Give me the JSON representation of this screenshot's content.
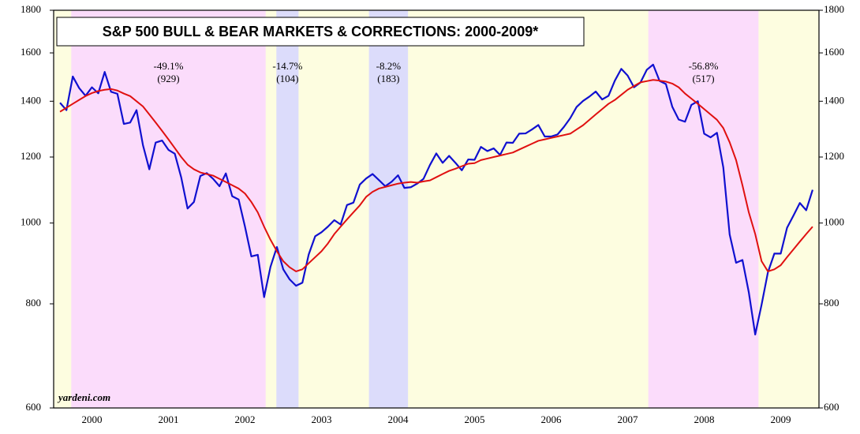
{
  "chart_data": {
    "type": "line",
    "title": "S&P 500 BULL & BEAR MARKETS & CORRECTIONS: 2000-2009*",
    "source": "yardeni.com",
    "log_scale": true,
    "background": "#fdfde0",
    "xlim": [
      2000,
      2010
    ],
    "xticks": [
      {
        "value": 2000.5,
        "label": "2000"
      },
      {
        "value": 2001.5,
        "label": "2001"
      },
      {
        "value": 2002.5,
        "label": "2002"
      },
      {
        "value": 2003.5,
        "label": "2003"
      },
      {
        "value": 2004.5,
        "label": "2004"
      },
      {
        "value": 2005.5,
        "label": "2005"
      },
      {
        "value": 2006.5,
        "label": "2006"
      },
      {
        "value": 2007.5,
        "label": "2007"
      },
      {
        "value": 2008.5,
        "label": "2008"
      },
      {
        "value": 2009.5,
        "label": "2009"
      }
    ],
    "ylim": [
      600,
      1800
    ],
    "yticks": [
      600,
      800,
      1000,
      1200,
      1400,
      1600,
      1800
    ],
    "regions": [
      {
        "start": 2000.23,
        "end": 2002.77,
        "color": "#fbdcfb",
        "label": "-49.1%",
        "days": "(929)"
      },
      {
        "start": 2002.91,
        "end": 2003.2,
        "color": "#dcdcfb",
        "label": "-14.7%",
        "days": "(104)"
      },
      {
        "start": 2004.12,
        "end": 2004.63,
        "color": "#dcdcfb",
        "label": "-8.2%",
        "days": "(183)"
      },
      {
        "start": 2007.77,
        "end": 2009.21,
        "color": "#fbdcfb",
        "label": "-56.8%",
        "days": "(517)"
      }
    ],
    "x": [
      2000.083,
      2000.167,
      2000.25,
      2000.333,
      2000.417,
      2000.5,
      2000.583,
      2000.667,
      2000.75,
      2000.833,
      2000.917,
      2001.0,
      2001.083,
      2001.167,
      2001.25,
      2001.333,
      2001.417,
      2001.5,
      2001.583,
      2001.667,
      2001.75,
      2001.833,
      2001.917,
      2002.0,
      2002.083,
      2002.167,
      2002.25,
      2002.333,
      2002.417,
      2002.5,
      2002.583,
      2002.667,
      2002.75,
      2002.833,
      2002.917,
      2003.0,
      2003.083,
      2003.167,
      2003.25,
      2003.333,
      2003.417,
      2003.5,
      2003.583,
      2003.667,
      2003.75,
      2003.833,
      2003.917,
      2004.0,
      2004.083,
      2004.167,
      2004.25,
      2004.333,
      2004.417,
      2004.5,
      2004.583,
      2004.667,
      2004.75,
      2004.833,
      2004.917,
      2005.0,
      2005.083,
      2005.167,
      2005.25,
      2005.333,
      2005.417,
      2005.5,
      2005.583,
      2005.667,
      2005.75,
      2005.833,
      2005.917,
      2006.0,
      2006.083,
      2006.167,
      2006.25,
      2006.333,
      2006.417,
      2006.5,
      2006.583,
      2006.667,
      2006.75,
      2006.833,
      2006.917,
      2007.0,
      2007.083,
      2007.167,
      2007.25,
      2007.333,
      2007.417,
      2007.5,
      2007.583,
      2007.667,
      2007.75,
      2007.833,
      2007.917,
      2008.0,
      2008.083,
      2008.167,
      2008.25,
      2008.333,
      2008.417,
      2008.5,
      2008.583,
      2008.667,
      2008.75,
      2008.833,
      2008.917,
      2009.0,
      2009.083,
      2009.167,
      2009.25,
      2009.333,
      2009.417,
      2009.5,
      2009.583,
      2009.667,
      2009.75,
      2009.833,
      2009.917
    ],
    "series": [
      {
        "color": "#1010d0",
        "width": 2.2,
        "values": [
          1394,
          1366,
          1499,
          1452,
          1421,
          1455,
          1431,
          1518,
          1437,
          1429,
          1315,
          1320,
          1366,
          1240,
          1160,
          1249,
          1256,
          1224,
          1211,
          1134,
          1041,
          1060,
          1139,
          1148,
          1130,
          1107,
          1147,
          1077,
          1067,
          990,
          912,
          916,
          815,
          886,
          936,
          880,
          856,
          841,
          848,
          917,
          964,
          975,
          990,
          1008,
          996,
          1051,
          1058,
          1112,
          1131,
          1145,
          1126,
          1107,
          1121,
          1141,
          1102,
          1104,
          1115,
          1130,
          1174,
          1212,
          1181,
          1204,
          1181,
          1157,
          1192,
          1191,
          1234,
          1220,
          1229,
          1207,
          1249,
          1248,
          1280,
          1281,
          1295,
          1311,
          1270,
          1270,
          1277,
          1304,
          1336,
          1378,
          1401,
          1418,
          1438,
          1407,
          1421,
          1482,
          1531,
          1503,
          1455,
          1474,
          1527,
          1549,
          1481,
          1468,
          1379,
          1331,
          1323,
          1386,
          1400,
          1280,
          1267,
          1283,
          1166,
          969,
          896,
          903,
          826,
          735,
          798,
          873,
          919,
          919,
          987,
          1021,
          1057,
          1036,
          1096
        ]
      },
      {
        "color": "#e01010",
        "width": 2,
        "values": [
          1360,
          1375,
          1390,
          1405,
          1420,
          1432,
          1440,
          1445,
          1448,
          1442,
          1430,
          1420,
          1400,
          1380,
          1350,
          1320,
          1290,
          1260,
          1230,
          1200,
          1175,
          1160,
          1150,
          1145,
          1140,
          1130,
          1120,
          1110,
          1100,
          1085,
          1060,
          1030,
          990,
          955,
          925,
          900,
          885,
          875,
          880,
          895,
          910,
          925,
          945,
          970,
          990,
          1010,
          1030,
          1050,
          1075,
          1090,
          1100,
          1105,
          1110,
          1115,
          1118,
          1120,
          1118,
          1122,
          1125,
          1135,
          1145,
          1155,
          1162,
          1170,
          1178,
          1180,
          1190,
          1195,
          1200,
          1205,
          1210,
          1215,
          1225,
          1235,
          1245,
          1255,
          1260,
          1265,
          1270,
          1275,
          1280,
          1295,
          1310,
          1330,
          1350,
          1370,
          1390,
          1405,
          1425,
          1445,
          1460,
          1475,
          1480,
          1485,
          1482,
          1478,
          1470,
          1455,
          1430,
          1410,
          1390,
          1370,
          1350,
          1330,
          1300,
          1250,
          1190,
          1110,
          1030,
          970,
          900,
          875,
          880,
          890,
          910,
          930,
          950,
          970,
          990
        ]
      }
    ]
  }
}
